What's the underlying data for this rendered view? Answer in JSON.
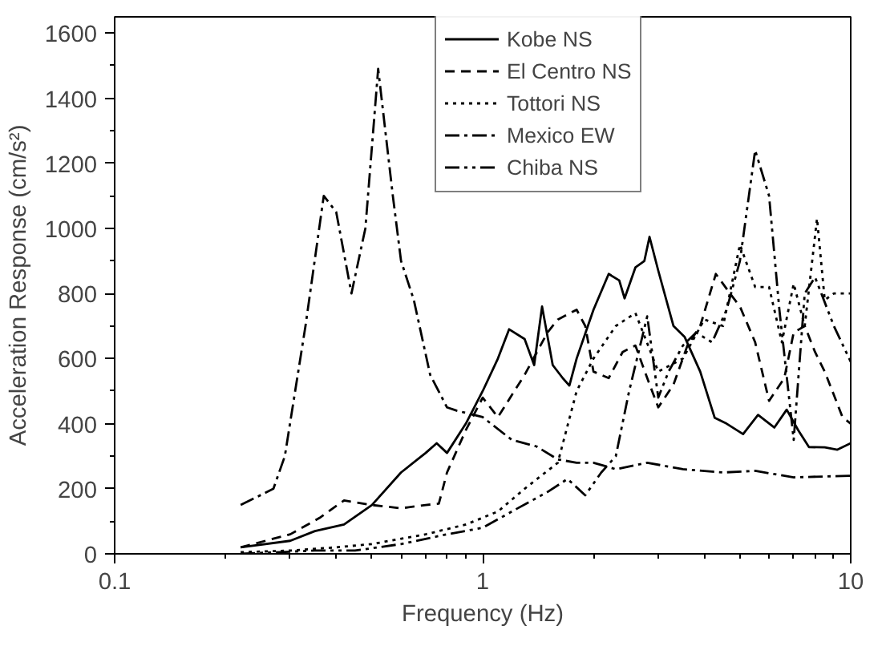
{
  "chart_data": {
    "type": "line",
    "xlabel": "Frequency (Hz)",
    "ylabel": "Acceleration Response (cm/s²)",
    "log": "x",
    "xlim": [
      0.1,
      10
    ],
    "xticks": [
      0.1,
      1,
      10
    ],
    "ylim": [
      0,
      1650
    ],
    "yticks": [
      0,
      200,
      400,
      600,
      800,
      1000,
      1200,
      1400,
      1600
    ],
    "grid": false,
    "legend": "top right",
    "marker": "none",
    "series": [
      {
        "name": "Kobe NS",
        "color": "#000000",
        "line_style": "solid",
        "x": [
          0.22,
          0.3,
          0.35,
          0.42,
          0.5,
          0.6,
          0.7,
          0.75,
          0.8,
          0.9,
          1.0,
          1.1,
          1.18,
          1.3,
          1.38,
          1.45,
          1.55,
          1.65,
          1.72,
          1.8,
          2.0,
          2.2,
          2.35,
          2.43,
          2.6,
          2.75,
          2.84,
          3.0,
          3.3,
          3.54,
          3.9,
          4.27,
          4.6,
          5.1,
          5.6,
          6.2,
          6.7,
          7.2,
          7.7,
          8.5,
          9.2,
          10
        ],
        "values": [
          20,
          40,
          70,
          90,
          150,
          250,
          310,
          340,
          310,
          400,
          500,
          600,
          690,
          660,
          580,
          760,
          580,
          540,
          517,
          600,
          750,
          860,
          840,
          785,
          880,
          900,
          974,
          870,
          700,
          666,
          560,
          418,
          400,
          368,
          427,
          388,
          443,
          380,
          328,
          327,
          320,
          340
        ]
      },
      {
        "name": "El Centro NS",
        "color": "#000000",
        "line_style": "dashed",
        "x": [
          0.22,
          0.3,
          0.36,
          0.42,
          0.5,
          0.6,
          0.7,
          0.76,
          0.8,
          0.9,
          1.0,
          1.1,
          1.3,
          1.5,
          1.6,
          1.8,
          1.9,
          2.0,
          2.2,
          2.4,
          2.6,
          2.8,
          3.0,
          3.3,
          3.6,
          3.9,
          4.3,
          4.7,
          5.0,
          5.5,
          6.0,
          6.6,
          7.0,
          7.5,
          8.0,
          8.5,
          9.5,
          10
        ],
        "values": [
          20,
          60,
          110,
          164,
          150,
          140,
          150,
          154,
          250,
          380,
          480,
          420,
          550,
          680,
          720,
          750,
          700,
          560,
          540,
          620,
          640,
          540,
          450,
          520,
          640,
          700,
          860,
          800,
          760,
          650,
          470,
          540,
          680,
          700,
          620,
          560,
          420,
          400
        ]
      },
      {
        "name": "Tottori NS",
        "color": "#000000",
        "line_style": "dotted",
        "x": [
          0.22,
          0.3,
          0.4,
          0.5,
          0.7,
          0.9,
          1.1,
          1.3,
          1.6,
          1.8,
          2.0,
          2.3,
          2.6,
          3.0,
          3.5,
          4.0,
          4.5,
          5.0,
          5.5,
          6.0,
          6.5,
          7.0,
          7.5,
          8.1,
          8.5,
          9.0,
          10
        ],
        "values": [
          5,
          10,
          20,
          30,
          60,
          90,
          130,
          200,
          280,
          500,
          600,
          700,
          740,
          560,
          600,
          720,
          700,
          950,
          820,
          820,
          650,
          830,
          700,
          1030,
          780,
          800,
          800
        ]
      },
      {
        "name": "Mexico EW",
        "color": "#000000",
        "line_style": "dashdot",
        "x": [
          0.22,
          0.27,
          0.29,
          0.33,
          0.37,
          0.4,
          0.44,
          0.48,
          0.52,
          0.57,
          0.6,
          0.65,
          0.72,
          0.8,
          0.85,
          1.0,
          1.2,
          1.4,
          1.6,
          1.8,
          2.0,
          2.3,
          2.8,
          3.5,
          4.5,
          5.5,
          7.0,
          10
        ],
        "values": [
          150,
          200,
          300,
          700,
          1100,
          1050,
          800,
          1000,
          1490,
          1100,
          900,
          780,
          550,
          450,
          440,
          420,
          350,
          330,
          290,
          280,
          280,
          260,
          280,
          260,
          250,
          255,
          235,
          240
        ]
      },
      {
        "name": "Chiba NS",
        "color": "#000000",
        "line_style": "dashdotdot",
        "x": [
          0.22,
          0.35,
          0.45,
          0.6,
          0.8,
          1.0,
          1.2,
          1.5,
          1.7,
          1.9,
          2.1,
          2.3,
          2.5,
          2.8,
          3.0,
          3.2,
          3.5,
          3.8,
          4.2,
          4.6,
          5.0,
          5.5,
          6.0,
          6.4,
          7.0,
          7.5,
          8.0,
          9.0,
          10
        ],
        "values": [
          0,
          10,
          10,
          30,
          60,
          80,
          130,
          190,
          230,
          180,
          250,
          300,
          500,
          730,
          480,
          560,
          640,
          680,
          650,
          750,
          900,
          1240,
          1100,
          750,
          350,
          800,
          850,
          700,
          590
        ]
      }
    ]
  }
}
